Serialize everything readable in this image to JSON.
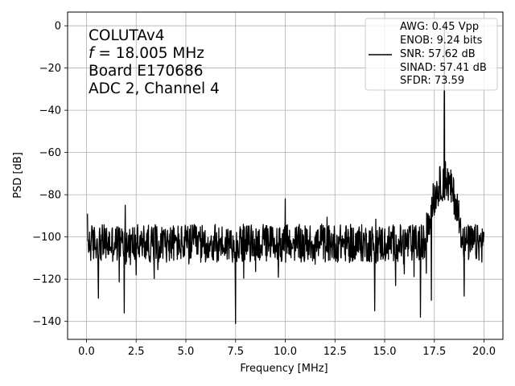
{
  "chart_data": {
    "type": "line",
    "xlabel": "Frequency [MHz]",
    "ylabel": "PSD [dB]",
    "xlim": [
      -0.95,
      20.95
    ],
    "ylim": [
      -148.5,
      6.5
    ],
    "xticks": [
      0,
      2.5,
      5,
      7.5,
      10,
      12.5,
      15,
      17.5,
      20
    ],
    "xtick_labels": [
      "0.0",
      "2.5",
      "5.0",
      "7.5",
      "10.0",
      "12.5",
      "15.0",
      "17.5",
      "20.0"
    ],
    "yticks": [
      0,
      -20,
      -40,
      -60,
      -80,
      -100,
      -120,
      -140
    ],
    "ytick_labels": [
      "0",
      "−20",
      "−40",
      "−60",
      "−80",
      "−100",
      "−120",
      "−140"
    ],
    "grid": true,
    "legend_position": "upper-right",
    "annotation": {
      "line1": "COLUTAv4",
      "line2_var": "f",
      "line2_rest": " = 18.005 MHz",
      "line3": "Board E170686",
      "line4": "ADC 2, Channel 4"
    },
    "legend_entries": [
      "AWG: 0.45 Vpp",
      "ENOB: 9.24 bits",
      "SNR: 57.62 dB",
      "SINAD: 57.41 dB",
      "SFDR: 73.59"
    ],
    "series": [
      {
        "color": "#000000",
        "noise_floor_db": -103,
        "noise_spread_db": 18,
        "x_range": [
          0.05,
          20.0
        ],
        "peaks": [
          {
            "x": 0.05,
            "y": -89
          },
          {
            "x": 1.95,
            "y": -85
          },
          {
            "x": 10.0,
            "y": -82
          },
          {
            "x": 18.005,
            "y": 0
          }
        ],
        "dips": [
          {
            "x": 0.6,
            "y": -129
          },
          {
            "x": 1.9,
            "y": -136
          },
          {
            "x": 7.5,
            "y": -141
          },
          {
            "x": 14.5,
            "y": -135
          },
          {
            "x": 16.8,
            "y": -138
          },
          {
            "x": 17.35,
            "y": -130
          },
          {
            "x": 19.0,
            "y": -128
          }
        ],
        "hump": {
          "x_start": 17.1,
          "x_end": 19.1,
          "center": 18.0,
          "top_db": -82
        }
      }
    ]
  }
}
